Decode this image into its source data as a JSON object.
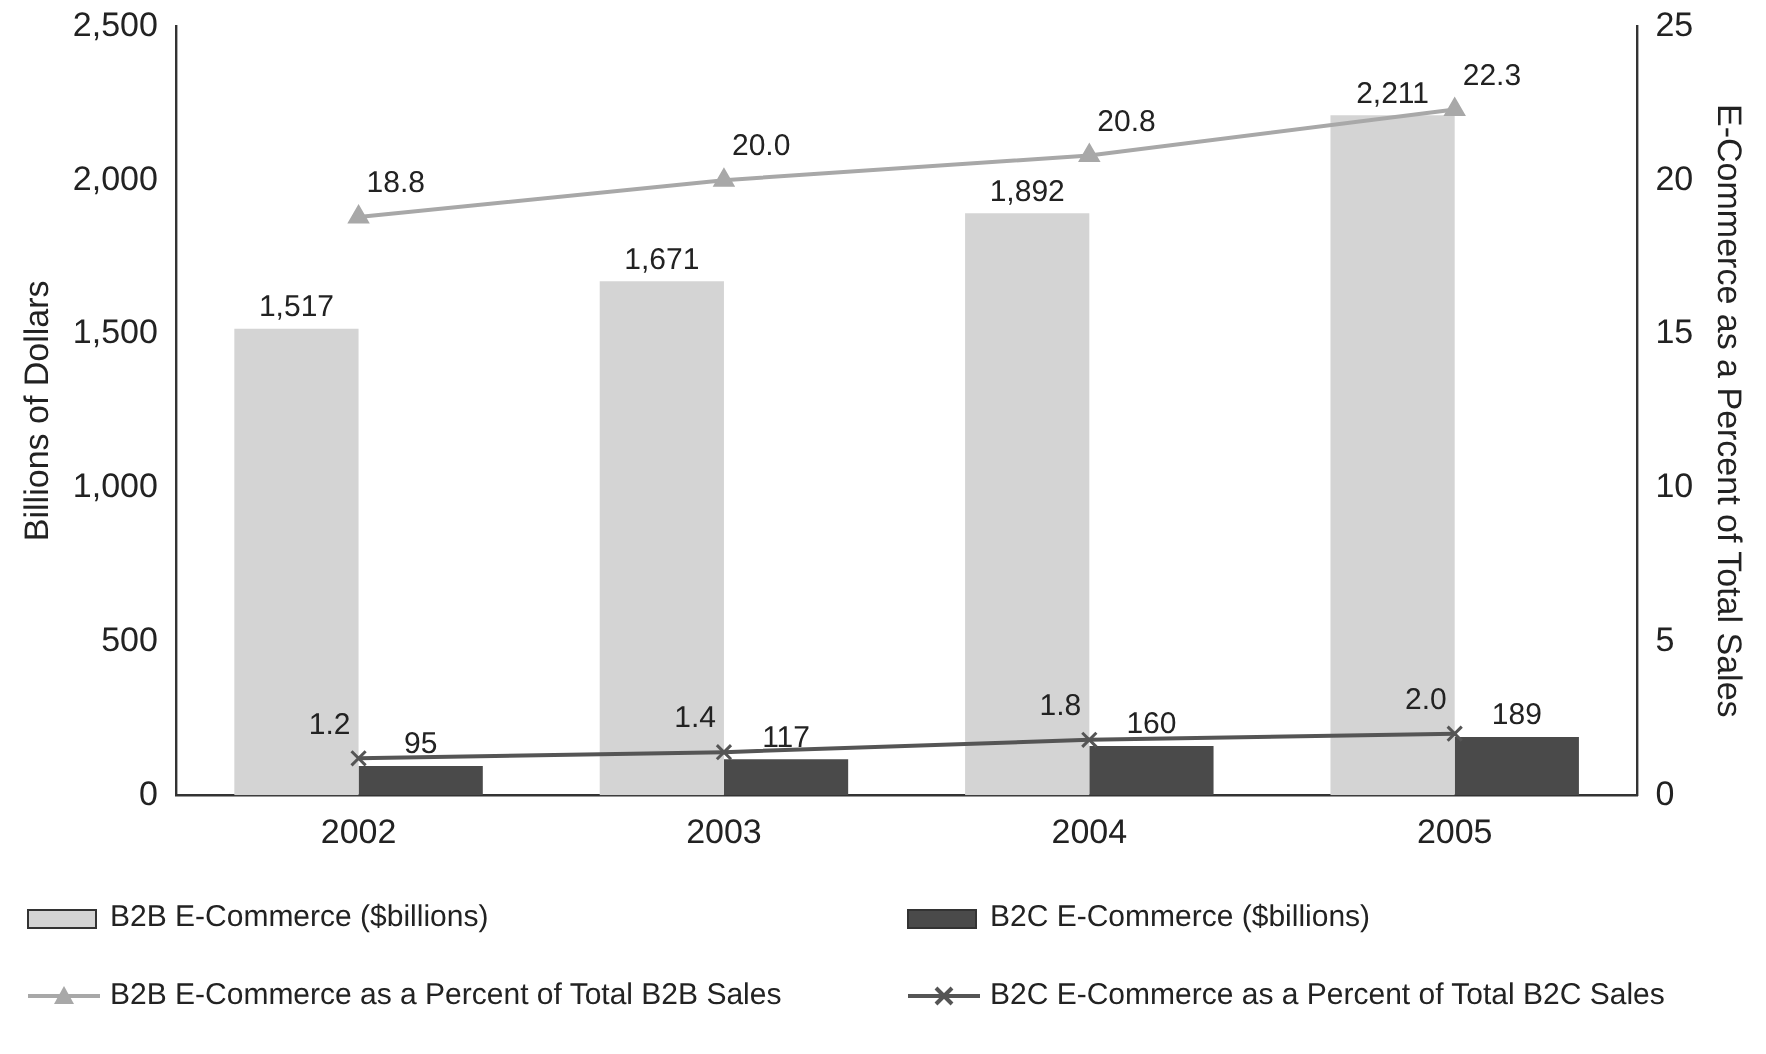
{
  "chart_data": {
    "type": "bar",
    "categories": [
      "2002",
      "2003",
      "2004",
      "2005"
    ],
    "ylabel": "Billions of Dollars",
    "y2label": "E-Commerce as a Percent of Total Sales",
    "ylim": [
      0,
      2500
    ],
    "yticks": [
      0,
      {
        "value": 500,
        "label": "500"
      },
      {
        "value": 1000,
        "label": "1,000"
      },
      {
        "value": 1500,
        "label": "1,500"
      },
      {
        "value": 2000,
        "label": "2,000"
      },
      {
        "value": 2500,
        "label": "2,500"
      }
    ],
    "y2lim": [
      0,
      25
    ],
    "y2ticks": [
      0,
      5,
      10,
      15,
      20,
      25
    ],
    "grid": false,
    "legend": "bottom",
    "series": [
      {
        "name": "B2B E-Commerce ($billions)",
        "color": "#d4d4d4",
        "values": [
          1517,
          1671,
          1892,
          2211
        ],
        "value_labels": [
          "1,517",
          "1,671",
          "1,892",
          "2,211"
        ]
      },
      {
        "name": "B2C E-Commerce ($billions)",
        "color": "#4a4a4a",
        "values": [
          95,
          117,
          160,
          189
        ],
        "value_labels": [
          "95",
          "117",
          "160",
          "189"
        ]
      },
      {
        "name": "B2B E-Commerce as a Percent of Total B2B Sales",
        "type": "line",
        "axis": "y2",
        "color": "#a8a8a8",
        "marker": "triangle",
        "values": [
          18.8,
          20.0,
          20.8,
          22.3
        ],
        "value_labels": [
          "18.8",
          "20.0",
          "20.8",
          "22.3"
        ]
      },
      {
        "name": "B2C E-Commerce as a Percent of Total B2C Sales",
        "type": "line",
        "axis": "y2",
        "color": "#555555",
        "marker": "cross",
        "values": [
          1.2,
          1.4,
          1.8,
          2.0
        ],
        "value_labels": [
          "1.2",
          "1.4",
          "1.8",
          "2.0"
        ]
      }
    ]
  }
}
